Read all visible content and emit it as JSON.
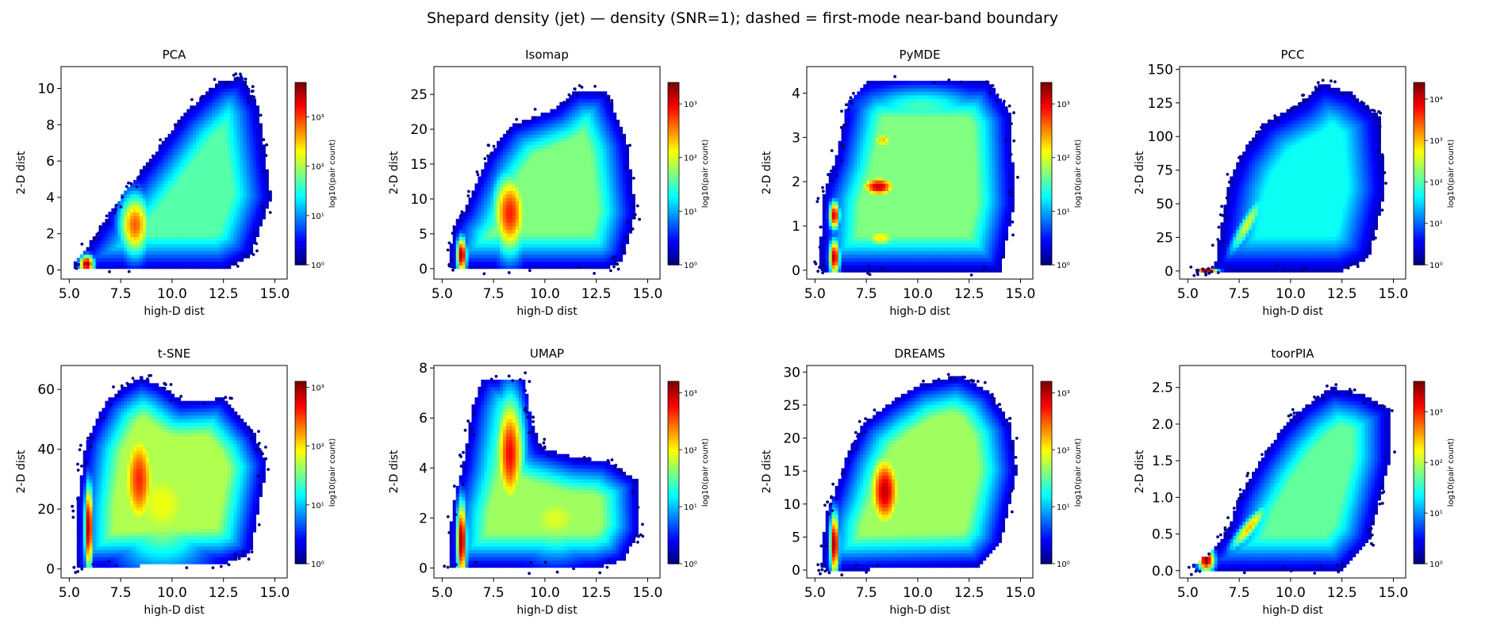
{
  "figure": {
    "title": "Shepard density (jet) — density (SNR=1); dashed = first-mode near-band boundary"
  },
  "colors": {
    "jet": [
      "#00007f",
      "#0000ff",
      "#0080ff",
      "#00ffff",
      "#80ff80",
      "#ffff00",
      "#ff8000",
      "#ff0000",
      "#7f0000"
    ]
  },
  "chart_data": [
    {
      "type": "heatmap",
      "title": "PCA",
      "xlabel": "high-D dist",
      "ylabel": "2-D dist",
      "xlim": [
        4.6,
        15.6
      ],
      "ylim": [
        -0.5,
        11.2
      ],
      "xticks": [
        "5.0",
        "7.5",
        "10.0",
        "12.5",
        "15.0"
      ],
      "yticks": [
        "0",
        "2",
        "4",
        "6",
        "8",
        "10"
      ],
      "colorbar": {
        "label": "log10(pair count)",
        "ticks": [
          "10⁰",
          "10¹",
          "10²",
          "10³"
        ],
        "max_exp": 3.7
      },
      "hull": [
        [
          5.2,
          0.3
        ],
        [
          5.7,
          1.0
        ],
        [
          6.6,
          2.5
        ],
        [
          7.5,
          4.0
        ],
        [
          9.0,
          6.2
        ],
        [
          10.5,
          8.5
        ],
        [
          12.2,
          10.3
        ],
        [
          13.4,
          10.6
        ],
        [
          14.2,
          9.0
        ],
        [
          14.8,
          4.0
        ],
        [
          13.8,
          0.8
        ],
        [
          12.5,
          0.0
        ],
        [
          5.4,
          0.0
        ]
      ],
      "blobs": [
        {
          "x": 5.85,
          "y": 0.35,
          "sx": 0.22,
          "sy": 0.3,
          "v": 3.7
        },
        {
          "x": 8.2,
          "y": 2.5,
          "sx": 0.5,
          "sy": 1.1,
          "v": 2.9
        }
      ]
    },
    {
      "type": "heatmap",
      "title": "Isomap",
      "xlabel": "high-D dist",
      "ylabel": "2-D dist",
      "xlim": [
        4.6,
        15.6
      ],
      "ylim": [
        -1.5,
        29.0
      ],
      "xticks": [
        "5.0",
        "7.5",
        "10.0",
        "12.5",
        "15.0"
      ],
      "yticks": [
        "0",
        "5",
        "10",
        "15",
        "20",
        "25"
      ],
      "colorbar": {
        "label": "log10(pair count)",
        "ticks": [
          "10⁰",
          "10¹",
          "10²",
          "10³"
        ],
        "max_exp": 3.4
      },
      "hull": [
        [
          5.3,
          1.0
        ],
        [
          5.6,
          6.5
        ],
        [
          6.1,
          8.5
        ],
        [
          6.6,
          12.0
        ],
        [
          7.2,
          16.0
        ],
        [
          8.3,
          20.5
        ],
        [
          9.2,
          21.5
        ],
        [
          10.5,
          23.0
        ],
        [
          11.5,
          25.5
        ],
        [
          13.0,
          25.5
        ],
        [
          14.0,
          18.0
        ],
        [
          14.4,
          8.0
        ],
        [
          13.8,
          1.5
        ],
        [
          13.0,
          0.0
        ],
        [
          5.5,
          0.0
        ]
      ],
      "blobs": [
        {
          "x": 5.95,
          "y": 2.0,
          "sx": 0.15,
          "sy": 1.6,
          "v": 3.4
        },
        {
          "x": 8.3,
          "y": 8.0,
          "sx": 0.55,
          "sy": 3.8,
          "v": 2.9
        }
      ]
    },
    {
      "type": "heatmap",
      "title": "PyMDE",
      "xlabel": "high-D dist",
      "ylabel": "2-D dist",
      "xlim": [
        4.6,
        15.6
      ],
      "ylim": [
        -0.2,
        4.6
      ],
      "xticks": [
        "5.0",
        "7.5",
        "10.0",
        "12.5",
        "15.0"
      ],
      "yticks": [
        "0",
        "1",
        "2",
        "3",
        "4"
      ],
      "colorbar": {
        "label": "log10(pair count)",
        "ticks": [
          "10⁰",
          "10¹",
          "10²",
          "10³"
        ],
        "max_exp": 3.4
      },
      "hull": [
        [
          5.2,
          0.1
        ],
        [
          5.4,
          1.7
        ],
        [
          6.0,
          2.5
        ],
        [
          6.6,
          3.8
        ],
        [
          7.5,
          4.25
        ],
        [
          13.5,
          4.25
        ],
        [
          14.5,
          3.5
        ],
        [
          14.7,
          1.5
        ],
        [
          14.0,
          0.0
        ],
        [
          5.3,
          0.0
        ]
      ],
      "blobs": [
        {
          "x": 5.95,
          "y": 0.3,
          "sx": 0.16,
          "sy": 0.25,
          "v": 3.3
        },
        {
          "x": 5.95,
          "y": 1.25,
          "sx": 0.16,
          "sy": 0.2,
          "v": 3.2
        },
        {
          "x": 8.1,
          "y": 1.9,
          "sx": 0.55,
          "sy": 0.15,
          "v": 3.2
        },
        {
          "x": 8.3,
          "y": 2.95,
          "sx": 0.4,
          "sy": 0.12,
          "v": 2.3
        },
        {
          "x": 8.2,
          "y": 0.75,
          "sx": 0.55,
          "sy": 0.15,
          "v": 2.2
        },
        {
          "x": 10.2,
          "y": 2.3,
          "sx": 2.0,
          "sy": 0.3,
          "v": 1.6
        },
        {
          "x": 10.2,
          "y": 3.7,
          "sx": 2.0,
          "sy": 0.3,
          "v": 1.5
        },
        {
          "x": 10.5,
          "y": 1.1,
          "sx": 2.0,
          "sy": 0.3,
          "v": 1.4
        }
      ]
    },
    {
      "type": "heatmap",
      "title": "PCC",
      "xlabel": "high-D dist",
      "ylabel": "2-D dist",
      "xlim": [
        4.6,
        15.6
      ],
      "ylim": [
        -6,
        152
      ],
      "xticks": [
        "5.0",
        "7.5",
        "10.0",
        "12.5",
        "15.0"
      ],
      "yticks": [
        "0",
        "25",
        "50",
        "75",
        "100",
        "125",
        "150"
      ],
      "colorbar": {
        "label": "log10(pair count)",
        "ticks": [
          "10⁰",
          "10¹",
          "10²",
          "10³",
          "10⁴"
        ],
        "max_exp": 4.4
      },
      "hull": [
        [
          5.2,
          0.0
        ],
        [
          6.3,
          2.0
        ],
        [
          6.7,
          40.0
        ],
        [
          7.0,
          65.0
        ],
        [
          7.5,
          85.0
        ],
        [
          8.7,
          110.0
        ],
        [
          10.5,
          125.0
        ],
        [
          11.5,
          140.0
        ],
        [
          13.0,
          132.0
        ],
        [
          14.3,
          115.0
        ],
        [
          14.6,
          60.0
        ],
        [
          13.8,
          10.0
        ],
        [
          12.5,
          0.0
        ],
        [
          6.6,
          0.0
        ]
      ],
      "blobs": [
        {
          "x": 5.9,
          "y": 0.0,
          "sx": 0.35,
          "sy": 1.5,
          "v": 4.4
        },
        {
          "x": 7.9,
          "y": 35.0,
          "sx": 0.55,
          "sy": 14.0,
          "v": 2.6,
          "rho": 0.9
        }
      ]
    },
    {
      "type": "heatmap",
      "title": "t-SNE",
      "xlabel": "high-D dist",
      "ylabel": "2-D dist",
      "xlim": [
        4.6,
        15.6
      ],
      "ylim": [
        -3,
        68
      ],
      "xticks": [
        "5.0",
        "7.5",
        "10.0",
        "12.5",
        "15.0"
      ],
      "yticks": [
        "0",
        "20",
        "40",
        "60"
      ],
      "colorbar": {
        "label": "log10(pair count)",
        "ticks": [
          "10⁰",
          "10¹",
          "10²",
          "10³"
        ],
        "max_exp": 3.1
      },
      "hull": [
        [
          5.3,
          1.0
        ],
        [
          5.4,
          22.0
        ],
        [
          5.8,
          42.0
        ],
        [
          6.2,
          48.0
        ],
        [
          6.8,
          56.0
        ],
        [
          7.5,
          60.0
        ],
        [
          8.5,
          64.0
        ],
        [
          9.5,
          61.0
        ],
        [
          10.5,
          56.0
        ],
        [
          12.5,
          57.0
        ],
        [
          14.0,
          45.0
        ],
        [
          14.6,
          35.0
        ],
        [
          13.8,
          5.0
        ],
        [
          12.5,
          2.0
        ],
        [
          5.5,
          0.5
        ]
      ],
      "blobs": [
        {
          "x": 5.95,
          "y": 14.0,
          "sx": 0.13,
          "sy": 9.0,
          "v": 3.1
        },
        {
          "x": 8.4,
          "y": 30.0,
          "sx": 0.55,
          "sy": 12.0,
          "v": 2.6
        },
        {
          "x": 9.5,
          "y": 22.0,
          "sx": 1.7,
          "sy": 14.0,
          "v": 1.9
        }
      ]
    },
    {
      "type": "heatmap",
      "title": "UMAP",
      "xlabel": "high-D dist",
      "ylabel": "2-D dist",
      "xlim": [
        4.6,
        15.6
      ],
      "ylim": [
        -0.4,
        8.1
      ],
      "xticks": [
        "5.0",
        "7.5",
        "10.0",
        "12.5",
        "15.0"
      ],
      "yticks": [
        "0",
        "2",
        "4",
        "6",
        "8"
      ],
      "colorbar": {
        "label": "log10(pair count)",
        "ticks": [
          "10⁰",
          "10¹",
          "10²",
          "10³"
        ],
        "max_exp": 3.2
      },
      "hull": [
        [
          5.3,
          0.2
        ],
        [
          5.5,
          2.5
        ],
        [
          6.0,
          4.0
        ],
        [
          6.5,
          6.5
        ],
        [
          7.0,
          7.6
        ],
        [
          9.0,
          7.6
        ],
        [
          9.3,
          6.0
        ],
        [
          9.8,
          4.8
        ],
        [
          11.5,
          4.4
        ],
        [
          13.0,
          4.3
        ],
        [
          14.5,
          3.5
        ],
        [
          14.6,
          1.5
        ],
        [
          13.8,
          0.3
        ],
        [
          12.5,
          0.0
        ],
        [
          5.5,
          0.0
        ]
      ],
      "blobs": [
        {
          "x": 5.95,
          "y": 1.1,
          "sx": 0.15,
          "sy": 1.0,
          "v": 3.2
        },
        {
          "x": 8.3,
          "y": 4.6,
          "sx": 0.45,
          "sy": 1.5,
          "v": 2.8
        },
        {
          "x": 10.5,
          "y": 2.0,
          "sx": 1.5,
          "sy": 1.0,
          "v": 1.9
        }
      ]
    },
    {
      "type": "heatmap",
      "title": "DREAMS",
      "xlabel": "high-D dist",
      "ylabel": "2-D dist",
      "xlim": [
        4.6,
        15.6
      ],
      "ylim": [
        -1.2,
        31
      ],
      "xticks": [
        "5.0",
        "7.5",
        "10.0",
        "12.5",
        "15.0"
      ],
      "yticks": [
        "0",
        "5",
        "10",
        "15",
        "20",
        "25",
        "30"
      ],
      "colorbar": {
        "label": "log10(pair count)",
        "ticks": [
          "10⁰",
          "10¹",
          "10²",
          "10³"
        ],
        "max_exp": 3.2
      },
      "hull": [
        [
          5.3,
          0.5
        ],
        [
          5.5,
          8.0
        ],
        [
          6.0,
          12.0
        ],
        [
          6.5,
          17.0
        ],
        [
          7.3,
          22.0
        ],
        [
          8.5,
          25.0
        ],
        [
          10.0,
          28.0
        ],
        [
          12.0,
          29.5
        ],
        [
          13.5,
          27.0
        ],
        [
          14.5,
          22.0
        ],
        [
          14.8,
          15.0
        ],
        [
          14.0,
          4.0
        ],
        [
          13.0,
          0.5
        ],
        [
          5.5,
          0.0
        ]
      ],
      "blobs": [
        {
          "x": 5.95,
          "y": 4.0,
          "sx": 0.14,
          "sy": 3.0,
          "v": 3.2
        },
        {
          "x": 8.4,
          "y": 12.0,
          "sx": 0.5,
          "sy": 3.8,
          "v": 3.0
        }
      ]
    },
    {
      "type": "heatmap",
      "title": "toorPIA",
      "xlabel": "high-D dist",
      "ylabel": "2-D dist",
      "xlim": [
        4.6,
        15.6
      ],
      "ylim": [
        -0.1,
        2.8
      ],
      "xticks": [
        "5.0",
        "7.5",
        "10.0",
        "12.5",
        "15.0"
      ],
      "yticks": [
        "0.0",
        "0.5",
        "1.0",
        "1.5",
        "2.0",
        "2.5"
      ],
      "colorbar": {
        "label": "log10(pair count)",
        "ticks": [
          "10⁰",
          "10¹",
          "10²",
          "10³"
        ],
        "max_exp": 3.6
      },
      "hull": [
        [
          5.2,
          0.05
        ],
        [
          6.3,
          0.3
        ],
        [
          7.0,
          0.6
        ],
        [
          7.5,
          1.0
        ],
        [
          8.5,
          1.5
        ],
        [
          9.5,
          1.9
        ],
        [
          10.5,
          2.2
        ],
        [
          12.0,
          2.5
        ],
        [
          13.5,
          2.4
        ],
        [
          14.8,
          2.2
        ],
        [
          14.8,
          1.5
        ],
        [
          13.8,
          0.4
        ],
        [
          12.5,
          0.0
        ],
        [
          5.4,
          0.0
        ]
      ],
      "blobs": [
        {
          "x": 5.9,
          "y": 0.15,
          "sx": 0.25,
          "sy": 0.1,
          "v": 3.6
        },
        {
          "x": 8.0,
          "y": 0.6,
          "sx": 0.6,
          "sy": 0.2,
          "v": 2.5,
          "rho": 0.9
        }
      ]
    }
  ]
}
